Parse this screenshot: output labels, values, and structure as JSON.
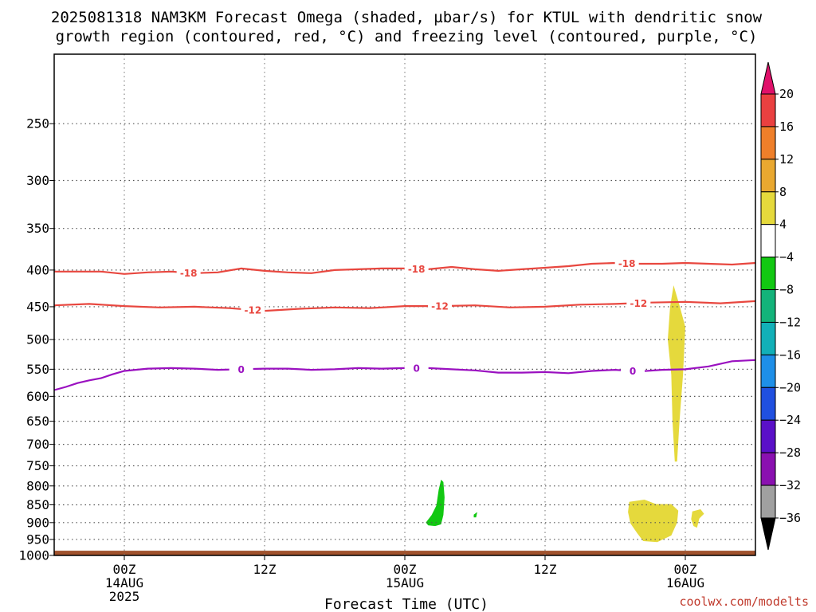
{
  "chart_data": {
    "type": "heatmap",
    "title_line1": "2025081318 NAM3KM Forecast Omega (shaded, µbar/s) for KTUL with dendritic snow",
    "title_line2": "growth region (contoured, red, °C) and freezing level (contoured, purple, °C)",
    "xlabel": "Forecast Time (UTC)",
    "ylabel": "",
    "credit": "coolwx.com/modelts",
    "x_unit": "hours since 2025-08-13 18Z",
    "xlim": [
      0,
      60
    ],
    "x_ticks": [
      {
        "x": 6,
        "lines": [
          "00Z",
          "14AUG",
          "2025"
        ]
      },
      {
        "x": 18,
        "lines": [
          "12Z"
        ]
      },
      {
        "x": 30,
        "lines": [
          "00Z",
          "15AUG"
        ]
      },
      {
        "x": 42,
        "lines": [
          "12Z"
        ]
      },
      {
        "x": 54,
        "lines": [
          "00Z",
          "16AUG"
        ]
      }
    ],
    "y_scale": "log",
    "ylim": [
      1000,
      200
    ],
    "y_ticks": [
      250,
      300,
      350,
      400,
      450,
      500,
      550,
      600,
      650,
      700,
      750,
      800,
      850,
      900,
      950,
      1000
    ],
    "grid": true,
    "ground_top_hPa": 985,
    "colorbar": {
      "labels": [
        "20",
        "16",
        "12",
        "8",
        "4",
        "−4",
        "−8",
        "−12",
        "−16",
        "−20",
        "−24",
        "−28",
        "−32",
        "−36"
      ],
      "colors": [
        "#ea4040",
        "#ef7f2a",
        "#e9a830",
        "#e5d93c",
        "#ffffff",
        "#12c812",
        "#13b37a",
        "#12b0b8",
        "#1e8fe8",
        "#2050e0",
        "#5a10c8",
        "#8a10b0",
        "#a0a0a0"
      ],
      "top_arrow_color": "#e0106a",
      "bottom_arrow_color": "#000000"
    },
    "contours": [
      {
        "label": "-18",
        "color": "#e8473f",
        "x": [
          0,
          4,
          6,
          8,
          10,
          12,
          14,
          16,
          18,
          20,
          22,
          24,
          26,
          28,
          30,
          32,
          34,
          36,
          38,
          40,
          42,
          44,
          46,
          48,
          50,
          52,
          54,
          56,
          58,
          60
        ],
        "y": [
          402,
          402,
          405,
          403,
          402,
          404,
          403,
          398,
          401,
          403,
          404,
          400,
          399,
          398,
          398,
          399,
          396,
          399,
          401,
          399,
          397,
          395,
          392,
          391,
          392,
          392,
          391,
          392,
          393,
          391
        ],
        "label_x": [
          11.5,
          31,
          49
        ]
      },
      {
        "label": "-12",
        "color": "#e8473f",
        "x": [
          0,
          3,
          6,
          9,
          12,
          15,
          18,
          21,
          24,
          27,
          30,
          33,
          36,
          39,
          42,
          45,
          48,
          51,
          54,
          57,
          60
        ],
        "y": [
          448,
          446,
          449,
          451,
          450,
          452,
          456,
          453,
          451,
          452,
          449,
          449,
          448,
          451,
          450,
          447,
          446,
          444,
          443,
          445,
          442
        ],
        "label_x": [
          17,
          33,
          50
        ]
      },
      {
        "label": "0",
        "color": "#9a10c0",
        "x": [
          0,
          1,
          2,
          3,
          4,
          5,
          6,
          8,
          10,
          12,
          14,
          16,
          18,
          20,
          22,
          24,
          26,
          28,
          30,
          32,
          34,
          36,
          38,
          40,
          42,
          44,
          46,
          48,
          50,
          52,
          54,
          56,
          58,
          60
        ],
        "y": [
          588,
          582,
          575,
          570,
          566,
          559,
          553,
          549,
          548,
          549,
          551,
          550,
          549,
          549,
          551,
          550,
          548,
          549,
          548,
          548,
          550,
          552,
          556,
          556,
          555,
          557,
          553,
          551,
          554,
          551,
          550,
          545,
          536,
          534
        ],
        "label_x": [
          16,
          31,
          49.5
        ]
      }
    ],
    "shaded_regions": [
      {
        "value_bin": "-8 to -4",
        "color": "#12c812",
        "pts": [
          [
            31.8,
            900
          ],
          [
            32.3,
            878
          ],
          [
            32.7,
            852
          ],
          [
            32.9,
            810
          ],
          [
            33.1,
            784
          ],
          [
            33.3,
            790
          ],
          [
            33.4,
            830
          ],
          [
            33.3,
            878
          ],
          [
            33.1,
            905
          ],
          [
            32.6,
            910
          ],
          [
            32.0,
            908
          ]
        ]
      },
      {
        "value_bin": "-8 to -4",
        "color": "#12c812",
        "pts": [
          [
            35.9,
            877
          ],
          [
            36.2,
            870
          ],
          [
            36.1,
            885
          ],
          [
            35.9,
            885
          ]
        ]
      },
      {
        "value_bin": "4 to 8",
        "color": "#e5d93c",
        "pts": [
          [
            53.0,
            420
          ],
          [
            53.5,
            448
          ],
          [
            54.0,
            480
          ],
          [
            53.8,
            560
          ],
          [
            53.5,
            650
          ],
          [
            53.3,
            740
          ],
          [
            53.1,
            740
          ],
          [
            52.9,
            650
          ],
          [
            52.8,
            560
          ],
          [
            52.5,
            500
          ],
          [
            52.7,
            450
          ]
        ]
      },
      {
        "value_bin": "4 to 8",
        "color": "#e5d93c",
        "pts": [
          [
            49.2,
            842
          ],
          [
            50.5,
            836
          ],
          [
            51.5,
            848
          ],
          [
            52.8,
            848
          ],
          [
            53.4,
            866
          ],
          [
            53.3,
            900
          ],
          [
            52.8,
            938
          ],
          [
            51.6,
            958
          ],
          [
            50.4,
            955
          ],
          [
            49.9,
            932
          ],
          [
            49.3,
            902
          ],
          [
            49.1,
            870
          ]
        ]
      },
      {
        "value_bin": "4 to 8",
        "color": "#e5d93c",
        "pts": [
          [
            54.6,
            868
          ],
          [
            55.3,
            862
          ],
          [
            55.6,
            875
          ],
          [
            55.2,
            888
          ],
          [
            55.0,
            915
          ],
          [
            54.7,
            910
          ],
          [
            54.5,
            890
          ]
        ]
      }
    ]
  }
}
